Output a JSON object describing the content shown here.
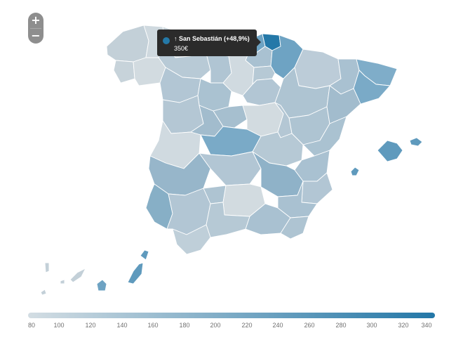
{
  "zoom": {
    "in_label": "+",
    "out_label": "−"
  },
  "tooltip": {
    "title": "↑ San Sebastián (+48,9%)",
    "value": "350€",
    "dot_color": "#2479a8"
  },
  "colors": {
    "scale_min": "#d3dde3",
    "scale_max": "#2377a7",
    "border": "#ffffff"
  },
  "legend": {
    "ticks": [
      "80",
      "100",
      "120",
      "140",
      "160",
      "180",
      "200",
      "220",
      "240",
      "260",
      "280",
      "300",
      "320",
      "340"
    ]
  }
}
